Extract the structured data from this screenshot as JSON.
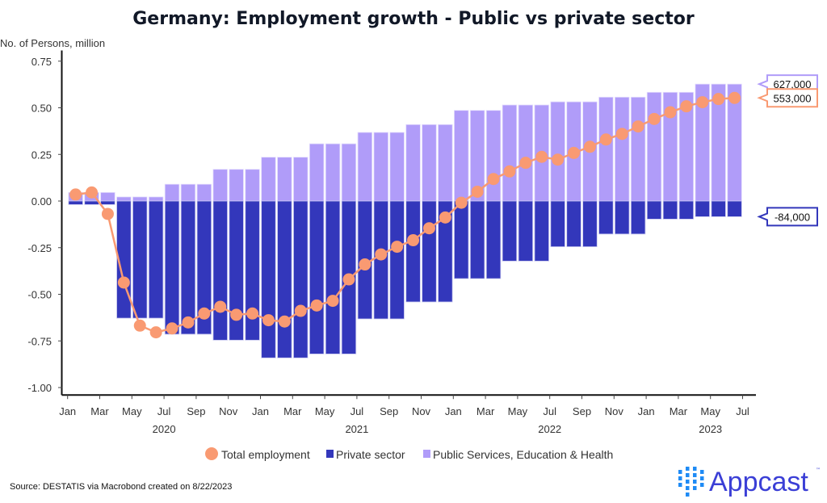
{
  "chart_data": {
    "type": "bar",
    "title": "Germany: Employment growth - Public vs private sector",
    "ylabel": "No. of Persons, million",
    "xlabel": "",
    "ylim": [
      -1.04,
      0.79
    ],
    "yticks": [
      0.75,
      0.5,
      0.25,
      0.0,
      -0.25,
      -0.5,
      -0.75,
      -1.0
    ],
    "ytick_labels": [
      "0.75",
      "0.50",
      "0.25",
      "0.00",
      "-0.25",
      "-0.50",
      "-0.75",
      "-1.00"
    ],
    "xtick_labels": [
      "Jan",
      "Mar",
      "May",
      "Jul",
      "Sep",
      "Nov",
      "Jan",
      "Mar",
      "May",
      "Jul",
      "Sep",
      "Nov",
      "Jan",
      "Mar",
      "May",
      "Jul",
      "Sep",
      "Nov",
      "Jan",
      "Mar",
      "May",
      "Jul"
    ],
    "year_labels": [
      "2020",
      "2021",
      "2022",
      "2023"
    ],
    "months": [
      "2020-01",
      "2020-02",
      "2020-03",
      "2020-04",
      "2020-05",
      "2020-06",
      "2020-07",
      "2020-08",
      "2020-09",
      "2020-10",
      "2020-11",
      "2020-12",
      "2021-01",
      "2021-02",
      "2021-03",
      "2021-04",
      "2021-05",
      "2021-06",
      "2021-07",
      "2021-08",
      "2021-09",
      "2021-10",
      "2021-11",
      "2021-12",
      "2022-01",
      "2022-02",
      "2022-03",
      "2022-04",
      "2022-05",
      "2022-06",
      "2022-07",
      "2022-08",
      "2022-09",
      "2022-10",
      "2022-11",
      "2022-12",
      "2023-01",
      "2023-02",
      "2023-03",
      "2023-04",
      "2023-05",
      "2023-06"
    ],
    "grid": false,
    "legend_position": "bottom",
    "series": [
      {
        "name": "Total employment",
        "kind": "line",
        "color": "#f99a72",
        "values": [
          0.035,
          0.046,
          -0.069,
          -0.437,
          -0.668,
          -0.704,
          -0.683,
          -0.651,
          -0.603,
          -0.567,
          -0.61,
          -0.603,
          -0.639,
          -0.646,
          -0.589,
          -0.56,
          -0.535,
          -0.42,
          -0.34,
          -0.286,
          -0.245,
          -0.21,
          -0.146,
          -0.088,
          -0.009,
          0.05,
          0.118,
          0.159,
          0.205,
          0.237,
          0.222,
          0.258,
          0.291,
          0.33,
          0.36,
          0.4,
          0.44,
          0.476,
          0.508,
          0.53,
          0.547,
          0.553
        ]
      },
      {
        "name": "Private sector",
        "kind": "bar",
        "color": "#3337bb",
        "values": [
          -0.019,
          -0.019,
          -0.019,
          -0.628,
          -0.628,
          -0.628,
          -0.714,
          -0.714,
          -0.714,
          -0.746,
          -0.746,
          -0.746,
          -0.841,
          -0.841,
          -0.841,
          -0.82,
          -0.82,
          -0.82,
          -0.632,
          -0.632,
          -0.632,
          -0.541,
          -0.541,
          -0.541,
          -0.416,
          -0.416,
          -0.416,
          -0.322,
          -0.322,
          -0.322,
          -0.245,
          -0.245,
          -0.245,
          -0.177,
          -0.177,
          -0.177,
          -0.097,
          -0.097,
          -0.097,
          -0.084,
          -0.084,
          -0.084
        ]
      },
      {
        "name": "Public Services, Education & Health",
        "kind": "bar",
        "color": "#b09cf9",
        "values": [
          0.046,
          0.046,
          0.046,
          0.022,
          0.022,
          0.022,
          0.09,
          0.09,
          0.09,
          0.17,
          0.17,
          0.17,
          0.235,
          0.235,
          0.235,
          0.307,
          0.307,
          0.307,
          0.368,
          0.368,
          0.368,
          0.41,
          0.41,
          0.41,
          0.486,
          0.486,
          0.486,
          0.515,
          0.515,
          0.515,
          0.532,
          0.532,
          0.532,
          0.557,
          0.557,
          0.557,
          0.583,
          0.583,
          0.583,
          0.627,
          0.627,
          0.627
        ]
      }
    ],
    "annotations": [
      {
        "label": "627,000",
        "value": 0.627,
        "color": "#b09cf9"
      },
      {
        "label": "553,000",
        "value": 0.553,
        "color": "#f99a72"
      },
      {
        "label": "-84,000",
        "value": -0.084,
        "color": "#3337bb"
      }
    ]
  },
  "footer": {
    "source": "Source: DESTATIS via Macrobond created on 8/22/2023",
    "logo_text": "Appcast",
    "logo_tm": "™"
  }
}
